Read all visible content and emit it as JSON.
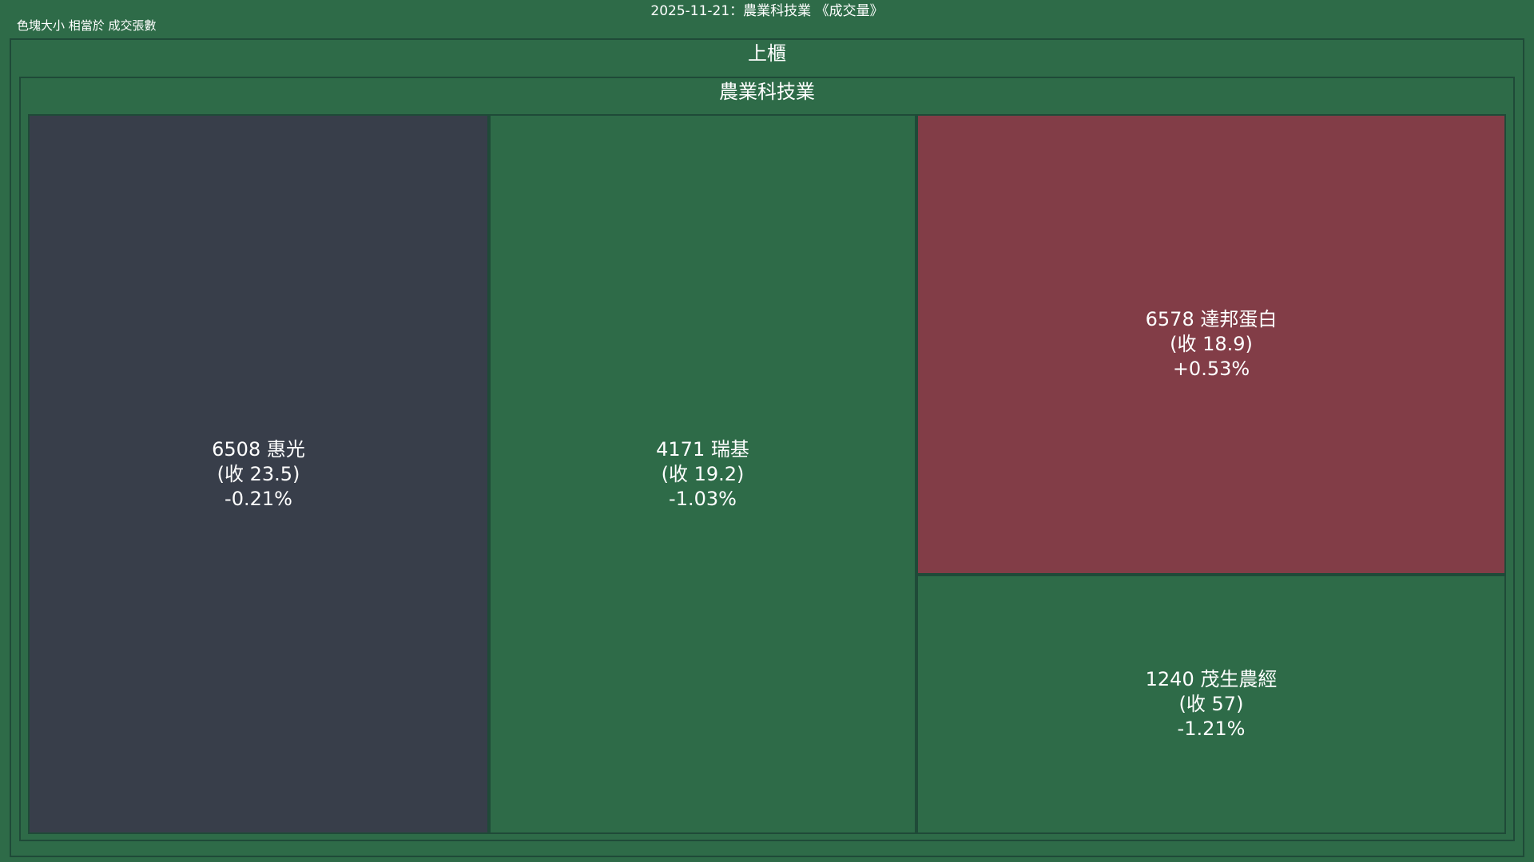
{
  "header": {
    "title": "2025-11-21：農業科技業 《成交量》",
    "caption": "色塊大小 相當於 成交張數"
  },
  "market": {
    "label": "上櫃"
  },
  "sector": {
    "label": "農業科技業"
  },
  "colors": {
    "background": "#2e6b48",
    "border": "#1f4a38",
    "gain": "#823d47",
    "loss": "#2e6b48",
    "flat": "#383e4a",
    "text": "#ffffff"
  },
  "chart_data": {
    "type": "treemap",
    "title": "2025-11-21：農業科技業 《成交量》",
    "size_metric": "成交張數",
    "hierarchy": [
      "上櫃",
      "農業科技業"
    ],
    "tiles": [
      {
        "code": "6508",
        "name": "惠光",
        "code_name": "6508 惠光",
        "close_label": "(收 23.5)",
        "close": 23.5,
        "change_label": "-0.21%",
        "change_pct": -0.21,
        "color": "#383e4a"
      },
      {
        "code": "4171",
        "name": "瑞基",
        "code_name": "4171 瑞基",
        "close_label": "(收 19.2)",
        "close": 19.2,
        "change_label": "-1.03%",
        "change_pct": -1.03,
        "color": "#2e6b48"
      },
      {
        "code": "6578",
        "name": "達邦蛋白",
        "code_name": "6578 達邦蛋白",
        "close_label": "(收 18.9)",
        "close": 18.9,
        "change_label": "+0.53%",
        "change_pct": 0.53,
        "color": "#823d47"
      },
      {
        "code": "1240",
        "name": "茂生農經",
        "code_name": "1240 茂生農經",
        "close_label": "(收 57)",
        "close": 57,
        "change_label": "-1.21%",
        "change_pct": -1.21,
        "color": "#2e6b48"
      }
    ]
  }
}
